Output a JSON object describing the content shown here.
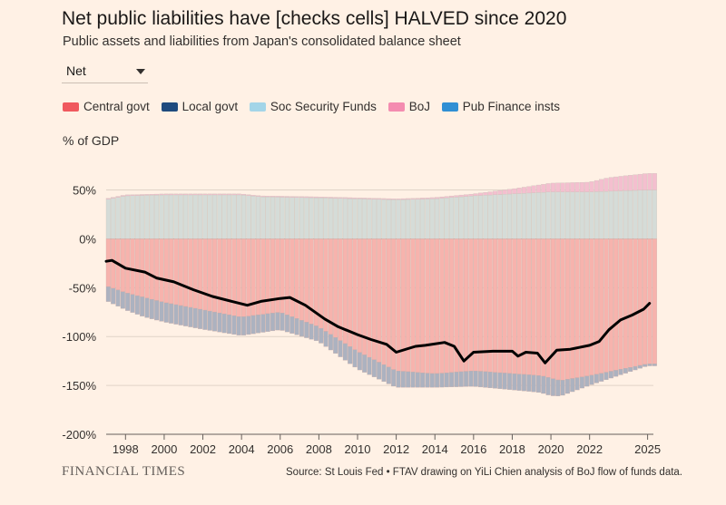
{
  "header": {
    "title": "Net public liabilities have [checks cells] HALVED since 2020",
    "subtitle": "Public assets and liabilities from Japan's consolidated balance sheet"
  },
  "dropdown": {
    "selected": "Net"
  },
  "legend": [
    {
      "label": "Central govt",
      "color": "#f0595e"
    },
    {
      "label": "Local govt",
      "color": "#1e4b7e"
    },
    {
      "label": "Soc Security Funds",
      "color": "#a3d5e8"
    },
    {
      "label": "BoJ",
      "color": "#f48cb0"
    },
    {
      "label": "Pub Finance insts",
      "color": "#2f8fd4"
    }
  ],
  "footer": {
    "brand": "FINANCIAL TIMES",
    "source": "Source: St Louis Fed • FTAV drawing on YiLi Chien analysis of BoJ flow of funds data."
  },
  "chart_data": {
    "type": "bar",
    "title": "Net public liabilities have [checks cells] HALVED since 2020",
    "ylabel": "% of GDP",
    "xlabel": "",
    "ylim": [
      -200,
      70
    ],
    "xlim": [
      1997,
      2025.3
    ],
    "yticks": [
      50,
      0,
      -50,
      -100,
      -150,
      -200
    ],
    "ytick_labels": [
      "50%",
      "0%",
      "-50%",
      "-100%",
      "-150%",
      "-200%"
    ],
    "xticks": [
      1998,
      2000,
      2002,
      2004,
      2006,
      2008,
      2010,
      2012,
      2014,
      2016,
      2018,
      2020,
      2022,
      2025
    ],
    "xtick_labels": [
      "1998",
      "2000",
      "2002",
      "2004",
      "2006",
      "2008",
      "2010",
      "2012",
      "2014",
      "2016",
      "2018",
      "2020",
      "2022",
      "2025"
    ],
    "bar_period": "quarterly",
    "series": [
      {
        "name": "Soc Security Funds (assets)",
        "color": "#d5dcd8",
        "knots": [
          [
            1997,
            40
          ],
          [
            1998,
            44
          ],
          [
            2000,
            45
          ],
          [
            2004,
            45
          ],
          [
            2005,
            43
          ],
          [
            2008,
            42
          ],
          [
            2010,
            41
          ],
          [
            2012,
            40
          ],
          [
            2014,
            41
          ],
          [
            2016,
            44
          ],
          [
            2018,
            46
          ],
          [
            2020,
            48
          ],
          [
            2022,
            48
          ],
          [
            2025,
            50
          ]
        ]
      },
      {
        "name": "BoJ (assets)",
        "color": "#f4bfcf",
        "knots": [
          [
            1997,
            1
          ],
          [
            2013,
            1
          ],
          [
            2016,
            2
          ],
          [
            2018,
            5
          ],
          [
            2020,
            9
          ],
          [
            2022,
            10
          ],
          [
            2023,
            14
          ],
          [
            2025,
            17
          ]
        ]
      },
      {
        "name": "Central govt (liabilities)",
        "color": "#f7b3ad",
        "knots": [
          [
            1997,
            -48
          ],
          [
            1998,
            -55
          ],
          [
            2000,
            -65
          ],
          [
            2004,
            -80
          ],
          [
            2006,
            -75
          ],
          [
            2008,
            -90
          ],
          [
            2010,
            -115
          ],
          [
            2012,
            -135
          ],
          [
            2014,
            -138
          ],
          [
            2016,
            -135
          ],
          [
            2019.5,
            -140
          ],
          [
            2020.5,
            -145
          ],
          [
            2022,
            -140
          ],
          [
            2025,
            -128
          ]
        ]
      },
      {
        "name": "Local govt + Pub Finance insts (liabilities)",
        "color": "#acb2c0",
        "knots": [
          [
            1997,
            -15
          ],
          [
            1999,
            -20
          ],
          [
            2002,
            -20
          ],
          [
            2006,
            -18
          ],
          [
            2008,
            -15
          ],
          [
            2010,
            -18
          ],
          [
            2012,
            -17
          ],
          [
            2014,
            -14
          ],
          [
            2016,
            -16
          ],
          [
            2019,
            -17
          ],
          [
            2020,
            -18
          ],
          [
            2022,
            -10
          ],
          [
            2025,
            -2
          ]
        ]
      },
      {
        "name": "Net",
        "color": "#000000",
        "type": "line",
        "knots": [
          [
            1997,
            -23
          ],
          [
            1997.3,
            -22
          ],
          [
            1998,
            -30
          ],
          [
            1999,
            -34
          ],
          [
            1999.6,
            -40
          ],
          [
            2000.5,
            -44
          ],
          [
            2001.5,
            -52
          ],
          [
            2002.5,
            -59
          ],
          [
            2003.5,
            -64
          ],
          [
            2004.3,
            -68
          ],
          [
            2005,
            -64
          ],
          [
            2006,
            -61
          ],
          [
            2006.5,
            -60
          ],
          [
            2007.3,
            -68
          ],
          [
            2008.3,
            -82
          ],
          [
            2009,
            -90
          ],
          [
            2010,
            -98
          ],
          [
            2010.7,
            -103
          ],
          [
            2011.5,
            -108
          ],
          [
            2012,
            -116
          ],
          [
            2013,
            -110
          ],
          [
            2013.5,
            -109
          ],
          [
            2014.5,
            -106
          ],
          [
            2015,
            -110
          ],
          [
            2015.5,
            -125
          ],
          [
            2016,
            -116
          ],
          [
            2017,
            -115
          ],
          [
            2018,
            -115
          ],
          [
            2018.3,
            -120
          ],
          [
            2018.7,
            -116
          ],
          [
            2019.3,
            -117
          ],
          [
            2019.7,
            -127
          ],
          [
            2020.3,
            -114
          ],
          [
            2021,
            -113
          ],
          [
            2022,
            -109
          ],
          [
            2022.5,
            -105
          ],
          [
            2023,
            -93
          ],
          [
            2023.6,
            -83
          ],
          [
            2024.2,
            -78
          ],
          [
            2024.8,
            -72
          ],
          [
            2025.1,
            -66
          ]
        ]
      }
    ]
  }
}
